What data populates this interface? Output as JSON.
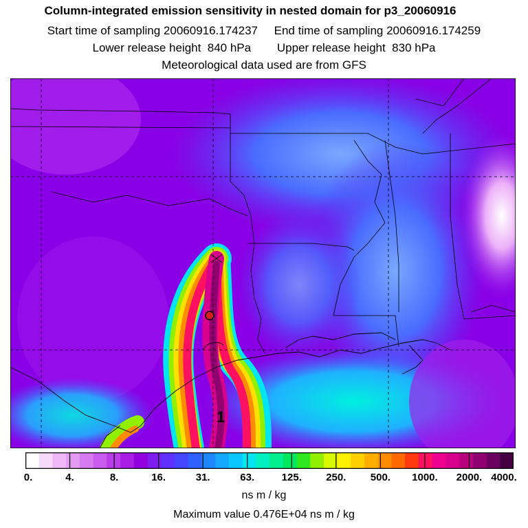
{
  "header": {
    "title": "Column-integrated emission sensitivity in nested domain for p3_20060916",
    "line2": "Start time of sampling 20060916.174237     End time of sampling 20060916.174259",
    "line3": "Lower release height  840 hPa        Upper release height  830 hPa",
    "line4": "Meteorological data used are from GFS"
  },
  "map": {
    "plume_label": "1",
    "release_marker_color": "#d62020",
    "background_color": "#8a00e6"
  },
  "colorbar": {
    "ticks": [
      "0.",
      "4.",
      "8.",
      "16.",
      "31.",
      "63.",
      "125.",
      "250.",
      "500.",
      "1000.",
      "2000.",
      "4000."
    ],
    "colors": [
      "#ffffff",
      "#f6d9fb",
      "#eeb8f7",
      "#e39af4",
      "#d67cf0",
      "#c85cec",
      "#b93de8",
      "#a81ee4",
      "#9400e0",
      "#7f1cf0",
      "#6030ff",
      "#4545ff",
      "#3060ff",
      "#1e86ff",
      "#14a8ff",
      "#0ac8ff",
      "#00e6f0",
      "#00f0c0",
      "#00f090",
      "#00e860",
      "#30e820",
      "#90f000",
      "#d8f800",
      "#fff000",
      "#ffd000",
      "#ffae00",
      "#ff8c00",
      "#ff6a00",
      "#ff3a10",
      "#ff1060",
      "#f00090",
      "#d8008c",
      "#b8007c",
      "#900070",
      "#6a0060",
      "#440040"
    ],
    "units": "ns m / kg",
    "max_text": "Maximum value  0.476E+04 ns m / kg"
  }
}
